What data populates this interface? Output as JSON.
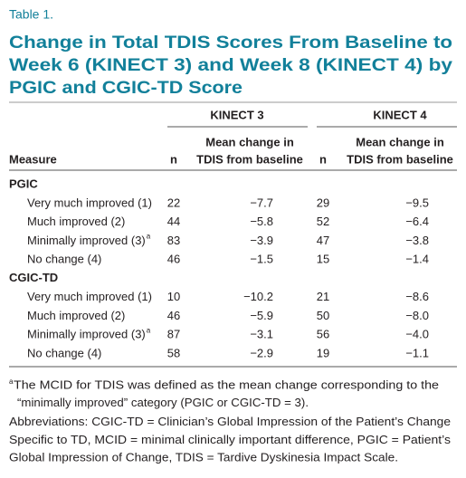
{
  "table_label": "Table 1.",
  "title_lines": [
    "Change in Total TDIS Scores From Baseline to",
    "Week 6 (KINECT 3) and Week 8 (KINECT 4) by",
    "PGIC and CGIC-TD Score"
  ],
  "table": {
    "group_headers": [
      "KINECT 3",
      "KINECT 4"
    ],
    "column_headers": [
      "Measure",
      "n",
      [
        "Mean change in",
        "TDIS from baseline"
      ],
      "n",
      [
        "Mean change in",
        "TDIS from baseline"
      ]
    ],
    "sections": [
      {
        "name": "PGIC",
        "rows": [
          {
            "measure": "Very much improved (1)",
            "cells": [
              "22",
              "−7.7",
              "29",
              "−9.5"
            ]
          },
          {
            "measure": "Much improved (2)",
            "cells": [
              "44",
              "−5.8",
              "52",
              "−6.4"
            ]
          },
          {
            "measure": "Minimally improved (3)",
            "note": "a",
            "cells": [
              "83",
              "−3.9",
              "47",
              "−3.8"
            ]
          },
          {
            "measure": "No change (4)",
            "cells": [
              "46",
              "−1.5",
              "15",
              "−1.4"
            ]
          }
        ]
      },
      {
        "name": "CGIC-TD",
        "rows": [
          {
            "measure": "Very much improved (1)",
            "cells": [
              "10",
              "−10.2",
              "21",
              "−8.6"
            ]
          },
          {
            "measure": "Much improved (2)",
            "cells": [
              "46",
              "−5.9",
              "50",
              "−8.0"
            ]
          },
          {
            "measure": "Minimally improved (3)",
            "note": "a",
            "cells": [
              "87",
              "−3.1",
              "56",
              "−4.0"
            ]
          },
          {
            "measure": "No change (4)",
            "cells": [
              "58",
              "−2.9",
              "19",
              "−1.1"
            ]
          }
        ]
      }
    ]
  },
  "footnotes": [
    {
      "marker": "a",
      "lines": [
        "The MCID for TDIS was defined as the mean change corresponding to the",
        "“minimally improved” category (PGIC or CGIC-TD = 3)."
      ]
    },
    {
      "lines": [
        "Abbreviations: CGIC-TD = Clinician’s Global Impression of the Patient’s Change",
        "Specific to TD, MCID = minimal clinically important difference, PGIC = Patient’s",
        "Global Impression of Change, TDIS = Tardive Dyskinesia Impact Scale."
      ]
    }
  ]
}
